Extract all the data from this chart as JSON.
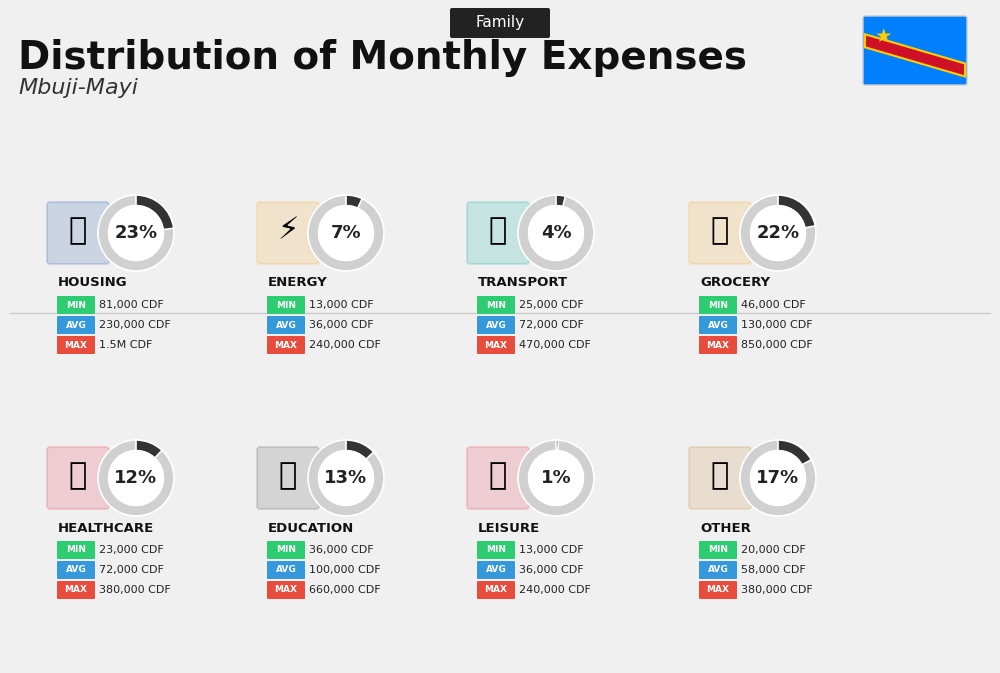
{
  "title": "Distribution of Monthly Expenses",
  "subtitle": "Mbuji-Mayi",
  "category_label": "Family",
  "bg_color": "#f0f0f0",
  "categories": [
    {
      "name": "HOUSING",
      "pct": 23,
      "min": "81,000 CDF",
      "avg": "230,000 CDF",
      "max": "1.5M CDF",
      "row": 0,
      "col": 0,
      "icon_color": "#2255aa"
    },
    {
      "name": "ENERGY",
      "pct": 7,
      "min": "13,000 CDF",
      "avg": "36,000 CDF",
      "max": "240,000 CDF",
      "row": 0,
      "col": 1,
      "icon_color": "#f5a623"
    },
    {
      "name": "TRANSPORT",
      "pct": 4,
      "min": "25,000 CDF",
      "avg": "72,000 CDF",
      "max": "470,000 CDF",
      "row": 0,
      "col": 2,
      "icon_color": "#00a99d"
    },
    {
      "name": "GROCERY",
      "pct": 22,
      "min": "46,000 CDF",
      "avg": "130,000 CDF",
      "max": "850,000 CDF",
      "row": 0,
      "col": 3,
      "icon_color": "#f5a623"
    },
    {
      "name": "HEALTHCARE",
      "pct": 12,
      "min": "23,000 CDF",
      "avg": "72,000 CDF",
      "max": "380,000 CDF",
      "row": 1,
      "col": 0,
      "icon_color": "#e8334a"
    },
    {
      "name": "EDUCATION",
      "pct": 13,
      "min": "36,000 CDF",
      "avg": "100,000 CDF",
      "max": "660,000 CDF",
      "row": 1,
      "col": 1,
      "icon_color": "#333333"
    },
    {
      "name": "LEISURE",
      "pct": 1,
      "min": "13,000 CDF",
      "avg": "36,000 CDF",
      "max": "240,000 CDF",
      "row": 1,
      "col": 2,
      "icon_color": "#e8334a"
    },
    {
      "name": "OTHER",
      "pct": 17,
      "min": "20,000 CDF",
      "avg": "58,000 CDF",
      "max": "380,000 CDF",
      "row": 1,
      "col": 3,
      "icon_color": "#c68c3c"
    }
  ],
  "min_color": "#2ecc71",
  "avg_color": "#3498db",
  "max_color": "#e74c3c",
  "donut_bg": "#cccccc",
  "donut_fg": "#333333",
  "label_colors": {
    "MIN": "#2ecc71",
    "AVG": "#3498db",
    "MAX": "#e74c3c"
  }
}
